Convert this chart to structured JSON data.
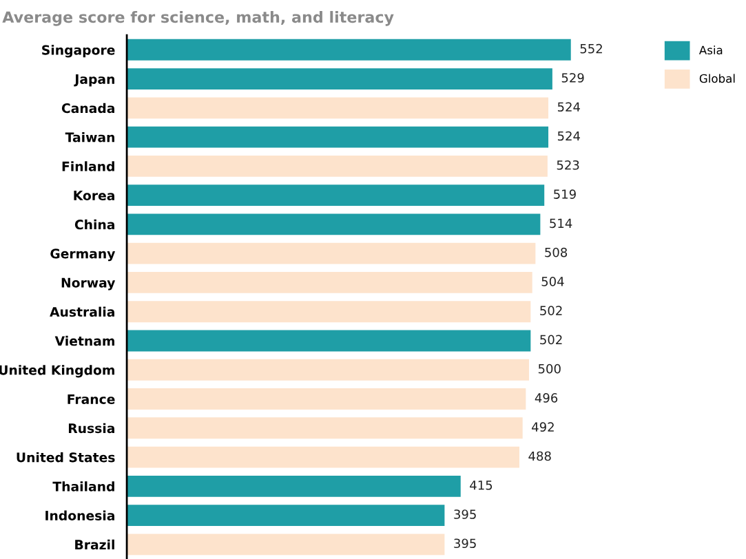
{
  "chart_data": {
    "type": "bar",
    "orientation": "horizontal",
    "title": "Average score for science, math, and literacy",
    "categories": [
      "Singapore",
      "Japan",
      "Canada",
      "Taiwan",
      "Finland",
      "Korea",
      "China",
      "Germany",
      "Norway",
      "Australia",
      "Vietnam",
      "United Kingdom",
      "France",
      "Russia",
      "United States",
      "Thailand",
      "Indonesia",
      "Brazil"
    ],
    "series": [
      {
        "name": "Asia",
        "color": "#1f9ea6",
        "values": [
          552,
          529,
          null,
          524,
          null,
          519,
          514,
          null,
          null,
          null,
          502,
          null,
          null,
          null,
          null,
          415,
          395,
          null
        ]
      },
      {
        "name": "Global",
        "color": "#fde3cc",
        "values": [
          null,
          null,
          524,
          null,
          523,
          null,
          null,
          508,
          504,
          502,
          null,
          500,
          496,
          492,
          488,
          null,
          null,
          395
        ]
      }
    ],
    "data_labels": true,
    "legend": "top right",
    "grid": false,
    "tick_labels": "y"
  }
}
